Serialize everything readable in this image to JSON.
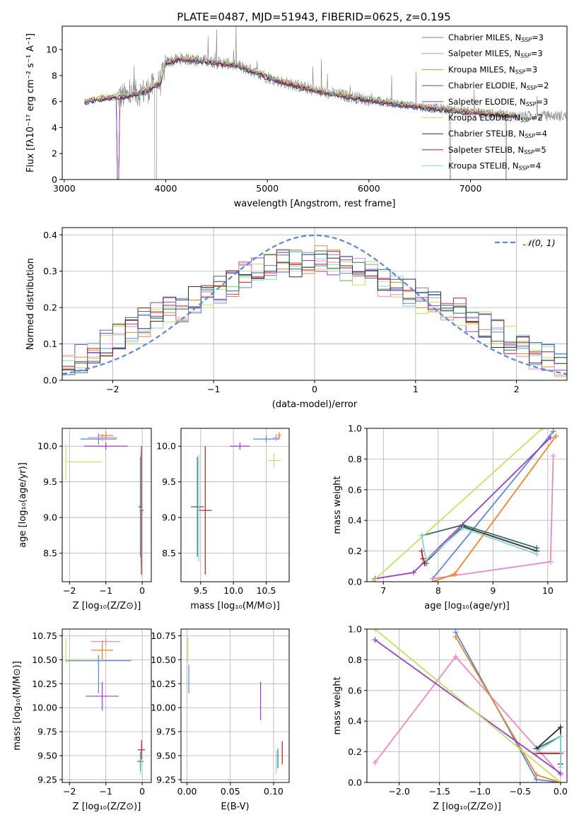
{
  "figure_title": "PLATE=0487, MJD=51943, FIBERID=0625, z=0.195",
  "colors": {
    "chabrier_miles": "#5f86d6",
    "salpeter_miles": "#e78ac3",
    "kroupa_miles": "#e6872c",
    "chabrier_elodie": "#2e6e62",
    "salpeter_elodie": "#9b3fc0",
    "kroupa_elodie": "#c2e06a",
    "chabrier_stelib": "#2f2f2f",
    "salpeter_stelib": "#b51c1c",
    "kroupa_stelib": "#88d2d8",
    "data": "#808080",
    "normal": "#5f86d6",
    "grid": "#b0b0b0"
  },
  "chart_data": [
    {
      "id": "spectrum",
      "type": "line",
      "xlabel": "wavelength [Angstrom, rest frame]",
      "ylabel": "Flux [fλ10⁻¹⁷ erg cm⁻² s⁻¹ A⁻¹]",
      "xlim": [
        2980,
        7950
      ],
      "ylim": [
        0,
        11.8
      ],
      "xticks": [
        3000,
        4000,
        5000,
        6000,
        7000
      ],
      "yticks": [
        0,
        2,
        4,
        6,
        8,
        10
      ],
      "grid": false,
      "legend": "upper-right",
      "series": [
        {
          "name": "Chabrier MILES, N",
          "sub": "SSP",
          "suffix": "=3",
          "color": "#5f86d6"
        },
        {
          "name": "Salpeter MILES, N",
          "sub": "SSP",
          "suffix": "=3",
          "color": "#e78ac3"
        },
        {
          "name": "Kroupa MILES, N",
          "sub": "SSP",
          "suffix": "=3",
          "color": "#e6872c"
        },
        {
          "name": "Chabrier ELODIE, N",
          "sub": "SSP",
          "suffix": "=2",
          "color": "#2e6e62"
        },
        {
          "name": "Salpeter ELODIE, N",
          "sub": "SSP",
          "suffix": "=3",
          "color": "#9b3fc0"
        },
        {
          "name": "Kroupa ELODIE, N",
          "sub": "SSP",
          "suffix": "=2",
          "color": "#c2e06a"
        },
        {
          "name": "Chabrier STELIB, N",
          "sub": "SSP",
          "suffix": "=4",
          "color": "#2f2f2f"
        },
        {
          "name": "Salpeter STELIB, N",
          "sub": "SSP",
          "suffix": "=5",
          "color": "#b51c1c"
        },
        {
          "name": "Kroupa STELIB, N",
          "sub": "SSP",
          "suffix": "=4",
          "color": "#88d2d8"
        }
      ],
      "model_curve": {
        "x": [
          3200,
          3400,
          3600,
          3800,
          3950,
          4000,
          4150,
          4300,
          4500,
          4700,
          4900,
          5100,
          5300,
          5500,
          5800,
          6100,
          6500,
          7000,
          7450
        ],
        "y": [
          6.0,
          6.3,
          6.4,
          6.8,
          7.5,
          9.0,
          9.3,
          9.2,
          9.0,
          8.8,
          8.2,
          7.6,
          7.2,
          6.8,
          6.4,
          6.0,
          5.6,
          5.2,
          4.9
        ]
      }
    },
    {
      "id": "residuals",
      "type": "step",
      "xlabel": "(data-model)/error",
      "ylabel": "Normed distribution",
      "xlim": [
        -2.5,
        2.5
      ],
      "ylim": [
        0,
        0.42
      ],
      "xticks": [
        -2,
        -1,
        0,
        1,
        2
      ],
      "xticklabels": [
        "−2",
        "−1",
        "0",
        "1",
        "2"
      ],
      "yticks": [
        0.0,
        0.1,
        0.2,
        0.3,
        0.4
      ],
      "yticklabels": [
        "0.0",
        "0.1",
        "0.2",
        "0.3",
        "0.4"
      ],
      "grid": true,
      "legend": "upper-right",
      "normal_label": "𝒩(0, 1)",
      "hist": [
        0.05,
        0.06,
        0.08,
        0.1,
        0.12,
        0.14,
        0.16,
        0.18,
        0.19,
        0.2,
        0.22,
        0.24,
        0.25,
        0.27,
        0.29,
        0.3,
        0.31,
        0.32,
        0.32,
        0.33,
        0.33,
        0.32,
        0.31,
        0.3,
        0.29,
        0.27,
        0.25,
        0.24,
        0.22,
        0.21,
        0.2,
        0.19,
        0.17,
        0.15,
        0.13,
        0.11,
        0.09,
        0.07,
        0.06,
        0.04
      ],
      "hist_colors": [
        "#9b3fc0",
        "#e6872c",
        "#c2e06a",
        "#88d2d8",
        "#b51c1c",
        "#e78ac3",
        "#5f86d6",
        "#2e6e62",
        "#2f2f2f"
      ]
    },
    {
      "id": "age_vs_Z",
      "type": "errorbar",
      "xlabel": "Z [log₁₀(Z/Z⊙)]",
      "ylabel": "age  [log₁₀(age/yr)]",
      "xlim": [
        -2.2,
        0.25
      ],
      "ylim": [
        8.1,
        10.25
      ],
      "xticks": [
        -2,
        -1,
        0
      ],
      "xticklabels": [
        "−2",
        "−1",
        "0"
      ],
      "yticks": [
        8.5,
        9.0,
        9.5,
        10.0
      ],
      "yticklabels": [
        "8.5",
        "9.0",
        "9.5",
        "10.0"
      ],
      "grid": true,
      "points": [
        {
          "x": -1.2,
          "y": 10.1,
          "xe": 0.5,
          "ye": 0.08,
          "color": "#5f86d6"
        },
        {
          "x": -1.1,
          "y": 10.12,
          "xe": 0.4,
          "ye": 0.05,
          "color": "#e78ac3"
        },
        {
          "x": -1.0,
          "y": 10.15,
          "xe": 0.2,
          "ye": 0.05,
          "color": "#e6872c"
        },
        {
          "x": -1.0,
          "y": 10.0,
          "xe": 0.6,
          "ye": 0.05,
          "color": "#9b3fc0"
        },
        {
          "x": -2.1,
          "y": 9.78,
          "xe": 0.0,
          "ye": 0.25,
          "color": "#c2e06a"
        },
        {
          "x": -1.6,
          "y": 9.78,
          "xe": 0.5,
          "ye": 0.0,
          "color": "#c2e06a"
        },
        {
          "x": -0.05,
          "y": 9.15,
          "xe": 0.05,
          "ye": 0.7,
          "color": "#2f2f2f"
        },
        {
          "x": -0.02,
          "y": 9.1,
          "xe": 0.05,
          "ye": 0.9,
          "color": "#b51c1c"
        },
        {
          "x": -0.04,
          "y": 9.12,
          "xe": 0.04,
          "ye": 0.8,
          "color": "#88d2d8"
        }
      ]
    },
    {
      "id": "age_vs_mass",
      "type": "errorbar",
      "xlabel": "mass [log₁₀(M/M⊙)]",
      "ylabel": "",
      "xlim": [
        9.2,
        10.85
      ],
      "ylim": [
        8.1,
        10.25
      ],
      "xticks": [
        9.5,
        10.0,
        10.5
      ],
      "xticklabels": [
        "9.5",
        "10.0",
        "10.5"
      ],
      "yticks": [
        8.5,
        9.0,
        9.5,
        10.0
      ],
      "yticklabels": [
        "8.5",
        "9.0",
        "9.5",
        "10.0"
      ],
      "grid": true,
      "points": [
        {
          "x": 9.45,
          "y": 9.15,
          "xe": 0.1,
          "ye": 0.7,
          "color": "#2e6e62"
        },
        {
          "x": 9.57,
          "y": 9.1,
          "xe": 0.1,
          "ye": 0.9,
          "color": "#b51c1c"
        },
        {
          "x": 9.47,
          "y": 9.13,
          "xe": 0.02,
          "ye": 0.75,
          "color": "#88d2d8"
        },
        {
          "x": 10.1,
          "y": 10.0,
          "xe": 0.15,
          "ye": 0.05,
          "color": "#9b3fc0"
        },
        {
          "x": 10.5,
          "y": 10.1,
          "xe": 0.2,
          "ye": 0.05,
          "color": "#5f86d6"
        },
        {
          "x": 10.65,
          "y": 10.12,
          "xe": 0.05,
          "ye": 0.05,
          "color": "#e78ac3"
        },
        {
          "x": 10.7,
          "y": 10.15,
          "xe": 0.03,
          "ye": 0.05,
          "color": "#e6872c"
        },
        {
          "x": 10.62,
          "y": 9.8,
          "xe": 0.1,
          "ye": 0.1,
          "color": "#c2e06a"
        }
      ]
    },
    {
      "id": "weight_vs_age",
      "type": "line",
      "xlabel": "age  [log₁₀(age/yr)]",
      "ylabel": "mass weight",
      "xlim": [
        6.7,
        10.35
      ],
      "ylim": [
        0,
        1.0
      ],
      "xticks": [
        7,
        8,
        9,
        10
      ],
      "yticks": [
        0.0,
        0.2,
        0.4,
        0.6,
        0.8,
        1.0
      ],
      "yticklabels": [
        "0.0",
        "0.2",
        "0.4",
        "0.6",
        "0.8",
        "1.0"
      ],
      "grid": true,
      "series": [
        {
          "color": "#5f86d6",
          "x": [
            7.9,
            10.1
          ],
          "y": [
            0.02,
            0.98
          ]
        },
        {
          "color": "#e78ac3",
          "x": [
            7.9,
            10.05,
            10.1
          ],
          "y": [
            0.02,
            0.13,
            0.82
          ]
        },
        {
          "color": "#e6872c",
          "x": [
            7.9,
            8.3,
            10.15
          ],
          "y": [
            0.0,
            0.05,
            0.95
          ]
        },
        {
          "color": "#2e6e62",
          "x": [
            7.7,
            8.45,
            9.8
          ],
          "y": [
            0.3,
            0.37,
            0.22
          ]
        },
        {
          "color": "#9b3fc0",
          "x": [
            6.85,
            7.55,
            10.05
          ],
          "y": [
            0.02,
            0.06,
            0.94
          ]
        },
        {
          "color": "#c2e06a",
          "x": [
            6.8,
            9.9
          ],
          "y": [
            0.0,
            1.0
          ]
        },
        {
          "color": "#2f2f2f",
          "x": [
            7.75,
            8.45,
            9.8
          ],
          "y": [
            0.12,
            0.36,
            0.2
          ]
        },
        {
          "color": "#b51c1c",
          "x": [
            7.7,
            7.72,
            7.78
          ],
          "y": [
            0.2,
            0.15,
            0.12
          ]
        },
        {
          "color": "#88d2d8",
          "x": [
            7.7,
            7.78,
            8.45,
            9.8
          ],
          "y": [
            0.3,
            0.14,
            0.35,
            0.18
          ]
        }
      ]
    },
    {
      "id": "mass_vs_Z",
      "type": "errorbar",
      "xlabel": "Z [log₁₀(Z/Z⊙)]",
      "ylabel": "mass [log₁₀(M/M⊙)]",
      "xlim": [
        -2.2,
        0.25
      ],
      "ylim": [
        9.22,
        10.82
      ],
      "xticks": [
        -2,
        -1,
        0
      ],
      "xticklabels": [
        "−2",
        "−1",
        "0"
      ],
      "yticks": [
        9.25,
        9.5,
        9.75,
        10.0,
        10.25,
        10.5,
        10.75
      ],
      "yticklabels": [
        "9.25",
        "9.50",
        "9.75",
        "10.00",
        "10.25",
        "10.50",
        "10.75"
      ],
      "grid": true,
      "points": [
        {
          "x": -1.2,
          "y": 10.49,
          "xe": 0.9,
          "ye": 0.04,
          "color": "#5f86d6"
        },
        {
          "x": -1.2,
          "y": 10.35,
          "xe": 0.0,
          "ye": 0.2,
          "color": "#5f86d6"
        },
        {
          "x": -1.0,
          "y": 10.69,
          "xe": 0.4,
          "ye": 0.04,
          "color": "#e78ac3"
        },
        {
          "x": -1.1,
          "y": 10.6,
          "xe": 0.3,
          "ye": 0.1,
          "color": "#e6872c"
        },
        {
          "x": -1.1,
          "y": 10.12,
          "xe": 0.45,
          "ye": 0.15,
          "color": "#9b3fc0"
        },
        {
          "x": -1.6,
          "y": 10.5,
          "xe": 0.5,
          "ye": 0.0,
          "color": "#c2e06a"
        },
        {
          "x": -2.1,
          "y": 10.6,
          "xe": 0.0,
          "ye": 0.13,
          "color": "#c2e06a"
        },
        {
          "x": -0.05,
          "y": 9.44,
          "xe": 0.08,
          "ye": 0.1,
          "color": "#2e6e62"
        },
        {
          "x": -0.02,
          "y": 9.56,
          "xe": 0.1,
          "ye": 0.1,
          "color": "#b51c1c"
        },
        {
          "x": -0.04,
          "y": 9.42,
          "xe": 0.04,
          "ye": 0.12,
          "color": "#88d2d8"
        }
      ]
    },
    {
      "id": "mass_vs_ebv",
      "type": "errorbar",
      "xlabel": "E(B-V)",
      "ylabel": "",
      "xlim": [
        -0.007,
        0.118
      ],
      "ylim": [
        9.22,
        10.82
      ],
      "xticks": [
        0.0,
        0.05,
        0.1
      ],
      "xticklabels": [
        "0.00",
        "0.05",
        "0.10"
      ],
      "yticks": [
        9.25,
        9.5,
        9.75,
        10.0,
        10.25,
        10.5,
        10.75
      ],
      "yticklabels": [
        "9.25",
        "9.50",
        "9.75",
        "10.00",
        "10.25",
        "10.50",
        "10.75"
      ],
      "grid": true,
      "points": [
        {
          "x": 0.001,
          "y": 10.6,
          "xe": 0.0,
          "ye": 0.13,
          "color": "#c2e06a"
        },
        {
          "x": 0.002,
          "y": 10.3,
          "xe": 0.0,
          "ye": 0.15,
          "color": "#5f86d6"
        },
        {
          "x": 0.085,
          "y": 10.07,
          "xe": 0.0,
          "ye": 0.2,
          "color": "#9b3fc0"
        },
        {
          "x": 0.103,
          "y": 9.43,
          "xe": 0.0,
          "ye": 0.12,
          "color": "#88d2d8"
        },
        {
          "x": 0.105,
          "y": 9.47,
          "xe": 0.0,
          "ye": 0.1,
          "color": "#2e6e62"
        },
        {
          "x": 0.11,
          "y": 9.53,
          "xe": 0.0,
          "ye": 0.12,
          "color": "#b51c1c"
        }
      ]
    },
    {
      "id": "weight_vs_Z",
      "type": "line",
      "xlabel": "Z [log₁₀(Z/Z⊙)]",
      "ylabel": "mass weight",
      "xlim": [
        -2.4,
        0.08
      ],
      "ylim": [
        0,
        1.0
      ],
      "xticks": [
        -2.0,
        -1.5,
        -1.0,
        -0.5,
        0.0
      ],
      "xticklabels": [
        "−2.0",
        "−1.5",
        "−1.0",
        "−0.5",
        "0.0"
      ],
      "yticks": [
        0.0,
        0.2,
        0.4,
        0.6,
        0.8,
        1.0
      ],
      "yticklabels": [
        "0.0",
        "0.2",
        "0.4",
        "0.6",
        "0.8",
        "1.0"
      ],
      "grid": true,
      "series": [
        {
          "color": "#5f86d6",
          "x": [
            -1.3,
            -0.3,
            0.0
          ],
          "y": [
            0.98,
            0.02,
            0.0
          ]
        },
        {
          "color": "#e78ac3",
          "x": [
            -2.3,
            -1.3,
            0.0
          ],
          "y": [
            0.13,
            0.82,
            0.05
          ]
        },
        {
          "color": "#e6872c",
          "x": [
            -1.3,
            -0.3,
            0.0
          ],
          "y": [
            0.95,
            0.05,
            0.0
          ]
        },
        {
          "color": "#2e6e62",
          "x": [
            -0.3,
            0.0
          ],
          "y": [
            0.22,
            0.3
          ]
        },
        {
          "color": "#9b3fc0",
          "x": [
            -2.3,
            0.0
          ],
          "y": [
            0.93,
            0.06
          ]
        },
        {
          "color": "#c2e06a",
          "x": [
            -2.3,
            0.0
          ],
          "y": [
            1.0,
            0.0
          ]
        },
        {
          "color": "#2f2f2f",
          "x": [
            -0.3,
            0.0,
            0.0
          ],
          "y": [
            0.22,
            0.36,
            0.12
          ]
        },
        {
          "color": "#b51c1c",
          "x": [
            -0.3,
            0.0,
            0.0
          ],
          "y": [
            0.19,
            0.19,
            0.12
          ]
        },
        {
          "color": "#88d2d8",
          "x": [
            -0.3,
            0.0,
            0.0
          ],
          "y": [
            0.2,
            0.3,
            0.1
          ]
        }
      ]
    }
  ]
}
